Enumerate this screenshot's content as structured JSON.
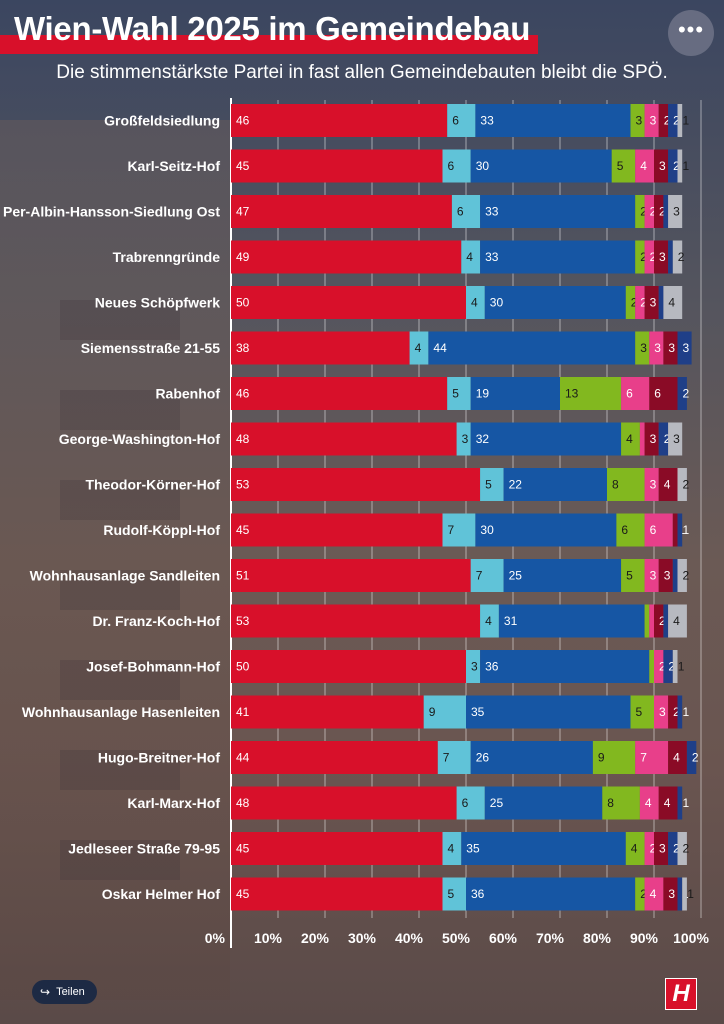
{
  "header": {
    "title": "Wien-Wahl 2025 im Gemeindebau",
    "subtitle": "Die stimmenstärkste Partei in fast allen Gemeindebauten bleibt die SPÖ.",
    "menu_label": "•••"
  },
  "footer": {
    "share_label": "Teilen",
    "share_icon": "share-icon",
    "logo_text": "H"
  },
  "colors": {
    "accent": "#d8102a",
    "segments": [
      "#d8102a",
      "#60c3d8",
      "#1656a4",
      "#82b81f",
      "#e83f8a",
      "#8a0b26",
      "#1f3f88",
      "#b7b9c0"
    ],
    "segment_text": [
      "#ffffff",
      "#1a1a1a",
      "#ffffff",
      "#1a1a1a",
      "#ffffff",
      "#ffffff",
      "#ffffff",
      "#1a1a1a"
    ]
  },
  "chart_data": {
    "type": "bar",
    "orientation": "horizontal",
    "stacked": true,
    "xlim": [
      0,
      100
    ],
    "x_tick_labels": [
      "0%",
      "10%",
      "20%",
      "30%",
      "40%",
      "50%",
      "60%",
      "70%",
      "80%",
      "90%",
      "100%"
    ],
    "categories": [
      "Großfeldsiedlung",
      "Karl-Seitz-Hof",
      "Per-Albin-Hansson-Siedlung Ost",
      "Trabrenngründe",
      "Neues Schöpfwerk",
      "Siemensstraße 21-55",
      "Rabenhof",
      "George-Washington-Hof",
      "Theodor-Körner-Hof",
      "Rudolf-Köppl-Hof",
      "Wohnhausanlage Sandleiten",
      "Dr. Franz-Koch-Hof",
      "Josef-Bohmann-Hof",
      "Wohnhausanlage Hasenleiten",
      "Hugo-Breitner-Hof",
      "Karl-Marx-Hof",
      "Jedleseer Straße 79-95",
      "Oskar Helmer Hof"
    ],
    "series": [
      {
        "values": [
          46,
          45,
          47,
          49,
          50,
          38,
          46,
          48,
          53,
          45,
          51,
          53,
          50,
          41,
          44,
          48,
          45,
          45
        ]
      },
      {
        "values": [
          6,
          6,
          6,
          4,
          4,
          4,
          5,
          3,
          5,
          7,
          7,
          4,
          3,
          9,
          7,
          6,
          4,
          5
        ]
      },
      {
        "values": [
          33,
          30,
          33,
          33,
          30,
          44,
          19,
          32,
          22,
          30,
          25,
          31,
          36,
          35,
          26,
          25,
          35,
          36
        ]
      },
      {
        "values": [
          3,
          5,
          2,
          2,
          2,
          3,
          13,
          4,
          8,
          6,
          5,
          1,
          1,
          5,
          9,
          8,
          4,
          2
        ]
      },
      {
        "values": [
          3,
          4,
          2,
          2,
          2,
          3,
          6,
          1,
          3,
          6,
          3,
          1,
          2,
          3,
          7,
          4,
          2,
          4
        ]
      },
      {
        "values": [
          2,
          3,
          2,
          3,
          3,
          3,
          6,
          3,
          4,
          1,
          3,
          2,
          0,
          2,
          4,
          4,
          3,
          3
        ]
      },
      {
        "values": [
          2,
          2,
          1,
          1,
          1,
          3,
          2,
          2,
          0,
          1,
          1,
          1,
          2,
          1,
          2,
          1,
          2,
          1
        ]
      },
      {
        "values": [
          1,
          1,
          3,
          2,
          4,
          0,
          0,
          3,
          2,
          0,
          2,
          4,
          1,
          0,
          0,
          0,
          2,
          1
        ]
      }
    ]
  }
}
